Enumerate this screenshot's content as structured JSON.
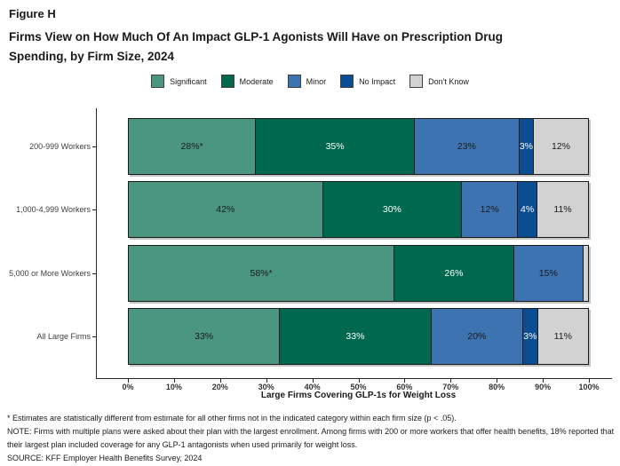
{
  "header": {
    "figure_label": "Figure H",
    "title_lines": [
      "Firms View on How Much Of An Impact GLP-1 Agonists Will Have on Prescription Drug",
      "Spending, by Firm Size, 2024"
    ]
  },
  "chart_data": {
    "type": "bar",
    "stacked": true,
    "orientation": "horizontal",
    "title": "Firms View on How Much Of An Impact GLP-1 Agonists Will Have on Prescription Drug Spending, by Firm Size, 2024",
    "categories": [
      "200-999 Workers",
      "1,000-4,999 Workers",
      "5,000 or More Workers",
      "All Large Firms"
    ],
    "series": [
      {
        "name": "Significant",
        "color": "#4A9680",
        "label_color": "#1a1a1a",
        "values": [
          28,
          42,
          58,
          33
        ],
        "labels": [
          "28%*",
          "42%",
          "58%*",
          "33%"
        ]
      },
      {
        "name": "Moderate",
        "color": "#00684F",
        "label_color": "#ffffff",
        "values": [
          35,
          30,
          26,
          33
        ],
        "labels": [
          "35%",
          "30%",
          "26%",
          "33%"
        ]
      },
      {
        "name": "Minor",
        "color": "#3C73B0",
        "label_color": "#1a1a1a",
        "values": [
          23,
          12,
          15,
          20
        ],
        "labels": [
          "23%",
          "12%",
          "15%",
          "20%"
        ]
      },
      {
        "name": "No Impact",
        "color": "#0A4D92",
        "label_color": "#ffffff",
        "values": [
          3,
          4,
          0,
          3
        ],
        "labels": [
          "3%",
          "4%",
          "",
          "3%"
        ]
      },
      {
        "name": "Don't Know",
        "color": "#D2D2D2",
        "label_color": "#1a1a1a",
        "values": [
          12,
          11,
          1,
          11
        ],
        "labels": [
          "12%",
          "11%",
          "",
          "11%"
        ]
      }
    ],
    "xlabel": "Large Firms Covering GLP-1s for Weight Loss",
    "x_ticks": [
      "0%",
      "10%",
      "20%",
      "30%",
      "40%",
      "50%",
      "60%",
      "70%",
      "80%",
      "90%",
      "100%"
    ],
    "xlim": [
      0,
      100
    ],
    "legend_position": "top",
    "grid": false
  },
  "footnotes": {
    "asterisk": "* Estimates are statistically different from estimate for all other firms not in the indicated category within each firm size (p < .05).",
    "note": "NOTE: Firms with multiple plans were asked about their plan with the largest enrollment.  Among firms with 200 or more workers that offer health benefits, 18% reported that their largest plan included coverage for any GLP-1 antagonists when used primarily for weight loss.",
    "source": "SOURCE: KFF Employer Health Benefits Survey, 2024"
  }
}
